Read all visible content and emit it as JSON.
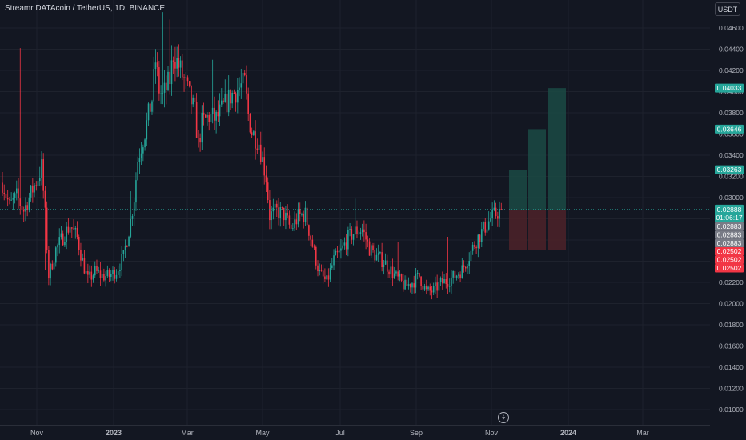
{
  "title": "Streamr DATAcoin / TetherUS, 1D, BINANCE",
  "currency": "USDT",
  "colors": {
    "background": "#131722",
    "up": "#26a69a",
    "down": "#f23645",
    "text": "#b2b5be",
    "profit_zone": "#1b4a44",
    "loss_zone": "#4d2229"
  },
  "icons": {
    "timezone": "lightning-circle-icon"
  },
  "chart_data": {
    "type": "candlestick",
    "timeframe": "1D",
    "price_axis": {
      "min": 0.0098,
      "max": 0.0476,
      "ticks": [
        "0.01000",
        "0.01200",
        "0.01400",
        "0.01600",
        "0.01800",
        "0.02000",
        "0.02200",
        "0.02400",
        "0.02600",
        "0.02800",
        "0.03000",
        "0.03200",
        "0.03400",
        "0.03600",
        "0.03800",
        "0.04000",
        "0.04200",
        "0.04400",
        "0.04600"
      ]
    },
    "time_axis": {
      "ticks": [
        "Nov",
        "2023",
        "Mar",
        "May",
        "Jul",
        "Sep",
        "Nov",
        "2024",
        "Mar"
      ]
    },
    "price_path": [
      [
        0,
        0.0314
      ],
      [
        4,
        0.0292
      ],
      [
        8,
        0.0301
      ],
      [
        12,
        0.0288
      ],
      [
        16,
        0.0304
      ],
      [
        20,
        0.0319
      ],
      [
        22,
        0.0329
      ],
      [
        24,
        0.0283
      ],
      [
        26,
        0.0226
      ],
      [
        30,
        0.0251
      ],
      [
        34,
        0.0263
      ],
      [
        38,
        0.0274
      ],
      [
        42,
        0.0262
      ],
      [
        45,
        0.024
      ],
      [
        48,
        0.0222
      ],
      [
        52,
        0.023
      ],
      [
        56,
        0.0226
      ],
      [
        60,
        0.0226
      ],
      [
        64,
        0.0231
      ],
      [
        68,
        0.0244
      ],
      [
        72,
        0.0278
      ],
      [
        74,
        0.03
      ],
      [
        76,
        0.0336
      ],
      [
        80,
        0.0362
      ],
      [
        84,
        0.0393
      ],
      [
        86,
        0.0429
      ],
      [
        88,
        0.0402
      ],
      [
        90,
        0.0395
      ],
      [
        94,
        0.0411
      ],
      [
        96,
        0.0436
      ],
      [
        100,
        0.042
      ],
      [
        104,
        0.0401
      ],
      [
        108,
        0.038
      ],
      [
        110,
        0.035
      ],
      [
        112,
        0.037
      ],
      [
        116,
        0.0377
      ],
      [
        120,
        0.0374
      ],
      [
        124,
        0.0385
      ],
      [
        128,
        0.0396
      ],
      [
        132,
        0.0402
      ],
      [
        136,
        0.0408
      ],
      [
        138,
        0.0378
      ],
      [
        140,
        0.0362
      ],
      [
        144,
        0.0352
      ],
      [
        148,
        0.0319
      ],
      [
        150,
        0.0283
      ],
      [
        154,
        0.0287
      ],
      [
        158,
        0.0284
      ],
      [
        162,
        0.027
      ],
      [
        166,
        0.0282
      ],
      [
        170,
        0.0284
      ],
      [
        174,
        0.0255
      ],
      [
        178,
        0.0228
      ],
      [
        182,
        0.022
      ],
      [
        186,
        0.0241
      ],
      [
        190,
        0.0249
      ],
      [
        194,
        0.0262
      ],
      [
        198,
        0.0268
      ],
      [
        202,
        0.027
      ],
      [
        206,
        0.0252
      ],
      [
        210,
        0.0244
      ],
      [
        214,
        0.024
      ],
      [
        218,
        0.0231
      ],
      [
        222,
        0.0223
      ],
      [
        226,
        0.0216
      ],
      [
        230,
        0.022
      ],
      [
        234,
        0.0226
      ],
      [
        238,
        0.0211
      ],
      [
        242,
        0.0212
      ],
      [
        246,
        0.0219
      ],
      [
        250,
        0.0222
      ],
      [
        254,
        0.0226
      ],
      [
        258,
        0.0232
      ],
      [
        262,
        0.0245
      ],
      [
        266,
        0.026
      ],
      [
        270,
        0.027
      ],
      [
        274,
        0.028
      ],
      [
        278,
        0.0286
      ],
      [
        280,
        0.0288
      ]
    ],
    "candle_count": 281,
    "last_price": "0.02888",
    "countdown": "01:06:17",
    "price_labels": [
      {
        "text": "0.04033",
        "value": 0.04033,
        "kind": "target"
      },
      {
        "text": "0.03646",
        "value": 0.03646,
        "kind": "target"
      },
      {
        "text": "0.03263",
        "value": 0.03263,
        "kind": "target"
      },
      {
        "text": "0.02883",
        "value": 0.02883,
        "kind": "entry"
      },
      {
        "text": "0.02883",
        "value": 0.02883,
        "kind": "entry"
      },
      {
        "text": "0.02883",
        "value": 0.02883,
        "kind": "entry"
      },
      {
        "text": "0.02502",
        "value": 0.02502,
        "kind": "stop"
      },
      {
        "text": "0.02502",
        "value": 0.02502,
        "kind": "stop"
      },
      {
        "text": "0.02502",
        "value": 0.02502,
        "kind": "stop"
      }
    ],
    "positions": [
      {
        "entry": 0.02883,
        "target": 0.03263,
        "stop": 0.02502
      },
      {
        "entry": 0.02883,
        "target": 0.03646,
        "stop": 0.02502
      },
      {
        "entry": 0.02883,
        "target": 0.04033,
        "stop": 0.02502
      }
    ]
  }
}
